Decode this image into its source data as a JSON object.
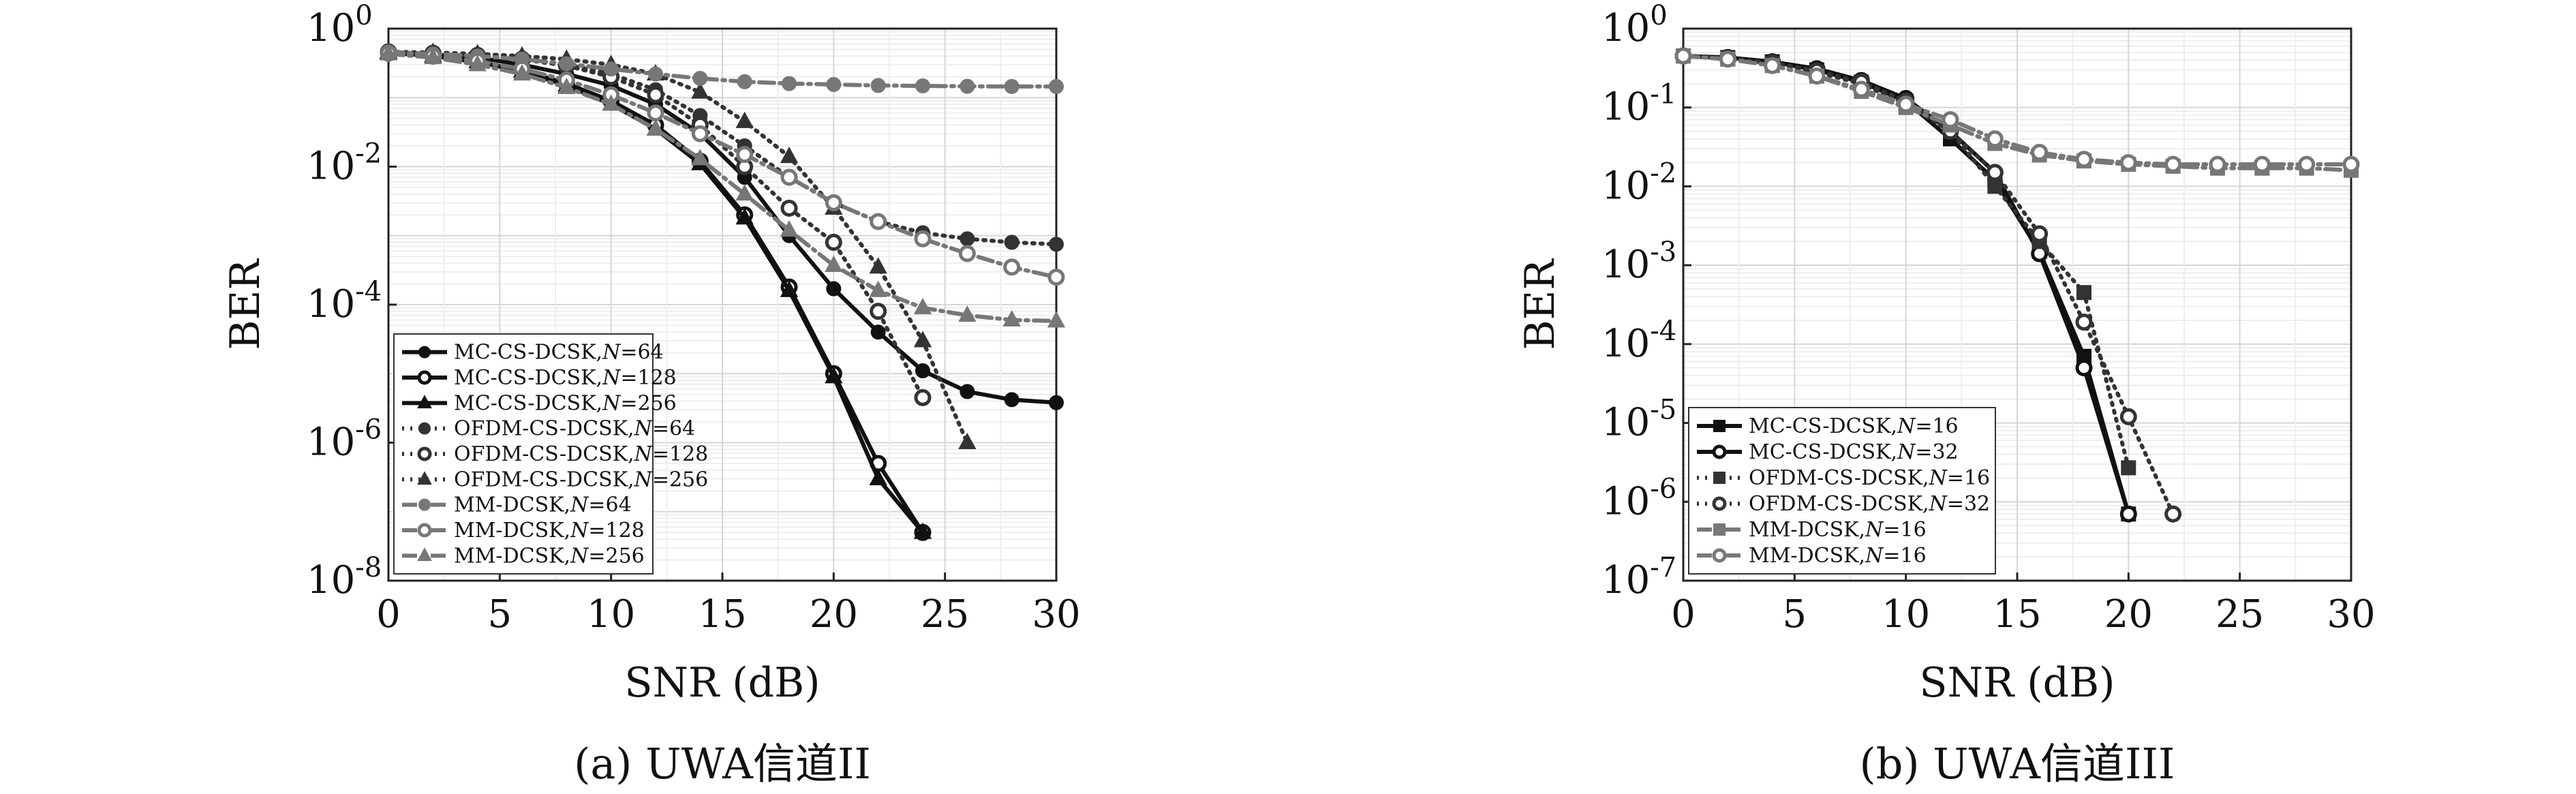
{
  "chart_data": [
    {
      "type": "line",
      "caption": "(a) UWA信道II",
      "xlabel": "SNR (dB)",
      "ylabel": "BER",
      "xlim": [
        0,
        30
      ],
      "ylim_log10": [
        -8,
        0
      ],
      "y_scale": "log",
      "grid": true,
      "legend_position": "bottom-left",
      "x_ticks": [
        "0",
        "5",
        "10",
        "15",
        "20",
        "25",
        "30"
      ],
      "y_ticks": [
        {
          "base": "10",
          "exp": "0"
        },
        {
          "base": "10",
          "exp": "-2"
        },
        {
          "base": "10",
          "exp": "-4"
        },
        {
          "base": "10",
          "exp": "-6"
        },
        {
          "base": "10",
          "exp": "-8"
        }
      ],
      "series": [
        {
          "name": "MC-CS-DCSK,",
          "n_label": "N",
          "n_value": "=64",
          "color": "#111111",
          "dash": "solid",
          "marker": "dot",
          "x": [
            0,
            2,
            4,
            6,
            8,
            10,
            12,
            14,
            16,
            18,
            20,
            22,
            24,
            26,
            28,
            30
          ],
          "y": [
            0.45,
            0.42,
            0.38,
            0.3,
            0.22,
            0.15,
            0.08,
            0.03,
            0.007,
            0.001,
            0.00017,
            4e-05,
            1.1e-05,
            5.5e-06,
            4.2e-06,
            3.8e-06
          ]
        },
        {
          "name": "MC-CS-DCSK,",
          "n_label": "N",
          "n_value": "=128",
          "color": "#111111",
          "dash": "solid",
          "marker": "ring",
          "x": [
            0,
            2,
            4,
            6,
            8,
            10,
            12,
            14,
            16,
            18,
            20,
            22,
            24
          ],
          "y": [
            0.45,
            0.4,
            0.33,
            0.25,
            0.16,
            0.09,
            0.04,
            0.012,
            0.002,
            0.00018,
            1e-05,
            5e-07,
            5e-08
          ]
        },
        {
          "name": "MC-CS-DCSK,",
          "n_label": "N",
          "n_value": "=256",
          "color": "#111111",
          "dash": "solid",
          "marker": "triangle",
          "x": [
            0,
            2,
            4,
            6,
            8,
            10,
            12,
            14,
            16,
            18,
            20,
            22,
            24
          ],
          "y": [
            0.45,
            0.4,
            0.33,
            0.24,
            0.15,
            0.08,
            0.035,
            0.011,
            0.0018,
            0.00016,
            9e-06,
            3e-07,
            5e-08
          ]
        },
        {
          "name": "OFDM-CS-DCSK,",
          "n_label": "N",
          "n_value": "=64",
          "color": "#333333",
          "dash": "dotted",
          "marker": "dot",
          "x": [
            0,
            2,
            4,
            6,
            8,
            10,
            12,
            14,
            16,
            18,
            20,
            22,
            24,
            26,
            28,
            30
          ],
          "y": [
            0.46,
            0.44,
            0.41,
            0.36,
            0.3,
            0.22,
            0.13,
            0.055,
            0.02,
            0.007,
            0.003,
            0.0016,
            0.0011,
            0.0009,
            0.0008,
            0.00075
          ]
        },
        {
          "name": "OFDM-CS-DCSK,",
          "n_label": "N",
          "n_value": "=128",
          "color": "#333333",
          "dash": "dotted",
          "marker": "ring",
          "x": [
            0,
            2,
            4,
            6,
            8,
            10,
            12,
            14,
            16,
            18,
            20,
            22,
            24
          ],
          "y": [
            0.46,
            0.44,
            0.41,
            0.36,
            0.29,
            0.2,
            0.11,
            0.04,
            0.01,
            0.0025,
            0.0008,
            8e-05,
            4.5e-06
          ]
        },
        {
          "name": "OFDM-CS-DCSK,",
          "n_label": "N",
          "n_value": "=256",
          "color": "#333333",
          "dash": "dotted",
          "marker": "triangle",
          "x": [
            0,
            2,
            4,
            6,
            8,
            10,
            12,
            14,
            16,
            18,
            20,
            22,
            24,
            26
          ],
          "y": [
            0.46,
            0.45,
            0.43,
            0.4,
            0.36,
            0.3,
            0.22,
            0.12,
            0.045,
            0.014,
            0.0025,
            0.00035,
            3e-05,
            1e-06
          ]
        },
        {
          "name": "MM-DCSK,",
          "n_label": "N",
          "n_value": "=64",
          "color": "#777777",
          "dash": "dashdot",
          "marker": "dot",
          "x": [
            0,
            2,
            4,
            6,
            8,
            10,
            12,
            14,
            16,
            18,
            20,
            22,
            24,
            26,
            28,
            30
          ],
          "y": [
            0.46,
            0.43,
            0.4,
            0.36,
            0.31,
            0.26,
            0.22,
            0.19,
            0.17,
            0.16,
            0.155,
            0.15,
            0.148,
            0.146,
            0.145,
            0.145
          ]
        },
        {
          "name": "MM-DCSK,",
          "n_label": "N",
          "n_value": "=128",
          "color": "#777777",
          "dash": "dashdot",
          "marker": "ring",
          "x": [
            0,
            2,
            4,
            6,
            8,
            10,
            12,
            14,
            16,
            18,
            20,
            22,
            24,
            26,
            28,
            30
          ],
          "y": [
            0.44,
            0.4,
            0.34,
            0.26,
            0.18,
            0.11,
            0.06,
            0.03,
            0.015,
            0.007,
            0.003,
            0.0016,
            0.0009,
            0.00055,
            0.00035,
            0.00025
          ]
        },
        {
          "name": "MM-DCSK,",
          "n_label": "N",
          "n_value": "=256",
          "color": "#777777",
          "dash": "dashdot",
          "marker": "triangle",
          "x": [
            0,
            2,
            4,
            6,
            8,
            10,
            12,
            14,
            16,
            18,
            20,
            22,
            24,
            26,
            28,
            30
          ],
          "y": [
            0.43,
            0.38,
            0.3,
            0.22,
            0.14,
            0.08,
            0.035,
            0.013,
            0.004,
            0.0012,
            0.00037,
            0.00016,
            9e-05,
            7e-05,
            6e-05,
            5.8e-05
          ]
        }
      ]
    },
    {
      "type": "line",
      "caption": "(b) UWA信道III",
      "xlabel": "SNR (dB)",
      "ylabel": "BER",
      "xlim": [
        0,
        30
      ],
      "ylim_log10": [
        -7,
        0
      ],
      "y_scale": "log",
      "grid": true,
      "legend_position": "bottom-left",
      "x_ticks": [
        "0",
        "5",
        "10",
        "15",
        "20",
        "25",
        "30"
      ],
      "y_ticks": [
        {
          "base": "10",
          "exp": "0"
        },
        {
          "base": "10",
          "exp": "-1"
        },
        {
          "base": "10",
          "exp": "-2"
        },
        {
          "base": "10",
          "exp": "-3"
        },
        {
          "base": "10",
          "exp": "-4"
        },
        {
          "base": "10",
          "exp": "-5"
        },
        {
          "base": "10",
          "exp": "-6"
        },
        {
          "base": "10",
          "exp": "-7"
        }
      ],
      "series": [
        {
          "name": "MC-CS-DCSK,",
          "n_label": "N",
          "n_value": "=16",
          "color": "#111111",
          "dash": "solid",
          "marker": "square",
          "x": [
            0,
            2,
            4,
            6,
            8,
            10,
            12,
            14,
            16,
            18,
            20
          ],
          "y": [
            0.45,
            0.43,
            0.38,
            0.3,
            0.21,
            0.12,
            0.04,
            0.012,
            0.0015,
            7e-05,
            7e-07
          ]
        },
        {
          "name": "MC-CS-DCSK,",
          "n_label": "N",
          "n_value": "=32",
          "color": "#111111",
          "dash": "solid",
          "marker": "ring",
          "x": [
            0,
            2,
            4,
            6,
            8,
            10,
            12,
            14,
            16,
            18,
            20
          ],
          "y": [
            0.45,
            0.43,
            0.38,
            0.31,
            0.22,
            0.13,
            0.05,
            0.015,
            0.0014,
            5e-05,
            7e-07
          ]
        },
        {
          "name": "OFDM-CS-DCSK,",
          "n_label": "N",
          "n_value": "=16",
          "color": "#333333",
          "dash": "dotted",
          "marker": "square",
          "x": [
            0,
            2,
            4,
            6,
            8,
            10,
            12,
            14,
            16,
            18,
            20
          ],
          "y": [
            0.45,
            0.42,
            0.36,
            0.28,
            0.2,
            0.11,
            0.05,
            0.01,
            0.002,
            0.00045,
            2.7e-06
          ]
        },
        {
          "name": "OFDM-CS-DCSK,",
          "n_label": "N",
          "n_value": "=32",
          "color": "#333333",
          "dash": "dotted",
          "marker": "ring",
          "x": [
            0,
            2,
            4,
            6,
            8,
            10,
            12,
            14,
            16,
            18,
            20,
            22
          ],
          "y": [
            0.45,
            0.42,
            0.37,
            0.29,
            0.21,
            0.12,
            0.05,
            0.015,
            0.0025,
            0.00019,
            1.2e-05,
            7e-07
          ]
        },
        {
          "name": "MM-DCSK,",
          "n_label": "N",
          "n_value": "=16",
          "color": "#777777",
          "dash": "dashdot",
          "marker": "square",
          "x": [
            0,
            2,
            4,
            6,
            8,
            10,
            12,
            14,
            16,
            18,
            20,
            22,
            24,
            26,
            28,
            30
          ],
          "y": [
            0.45,
            0.41,
            0.34,
            0.25,
            0.16,
            0.1,
            0.06,
            0.035,
            0.025,
            0.021,
            0.019,
            0.018,
            0.017,
            0.017,
            0.017,
            0.016
          ]
        },
        {
          "name": "MM-DCSK,",
          "n_label": "N",
          "n_value": "=16",
          "color": "#777777",
          "dash": "dashdot",
          "marker": "ring",
          "x": [
            0,
            2,
            4,
            6,
            8,
            10,
            12,
            14,
            16,
            18,
            20,
            22,
            24,
            26,
            28,
            30
          ],
          "y": [
            0.45,
            0.41,
            0.34,
            0.25,
            0.17,
            0.11,
            0.07,
            0.04,
            0.027,
            0.022,
            0.02,
            0.019,
            0.019,
            0.019,
            0.019,
            0.019
          ]
        }
      ]
    }
  ]
}
